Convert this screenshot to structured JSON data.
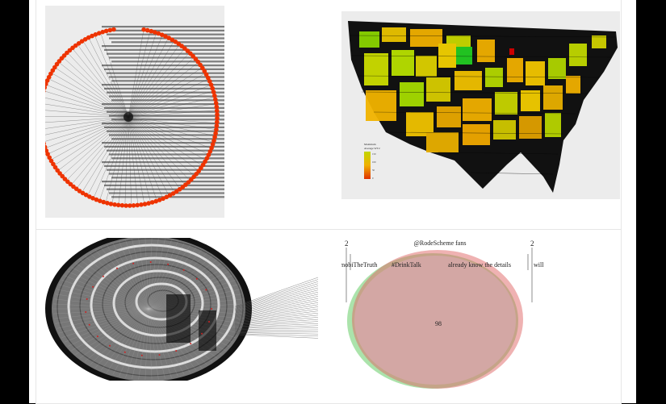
{
  "gallery": {
    "items": [
      {
        "id": "network-circle-plot"
      },
      {
        "id": "us-choropleth-map"
      },
      {
        "id": "spiral-network-plot"
      },
      {
        "id": "venn-diagram"
      }
    ]
  },
  "map_legend": {
    "title_line1": "Maximum",
    "title_line2": "Average WT2",
    "ticks": [
      "150",
      "100",
      "50",
      "0"
    ],
    "colors": {
      "high": "#c2d600",
      "mid": "#f0b000",
      "low": "#e03000"
    }
  },
  "venn": {
    "top_label": "@RodeScheme fans",
    "left_label": "mobiTheTruth",
    "left_label2": "#DrinkTalk",
    "right_label": "already know the details",
    "right_label2": "will",
    "center_value": "98",
    "left_count": "2",
    "right_count": "2",
    "colors": {
      "left": "#66cc66",
      "right": "#e06666",
      "fill": "#d8a8b0"
    }
  }
}
